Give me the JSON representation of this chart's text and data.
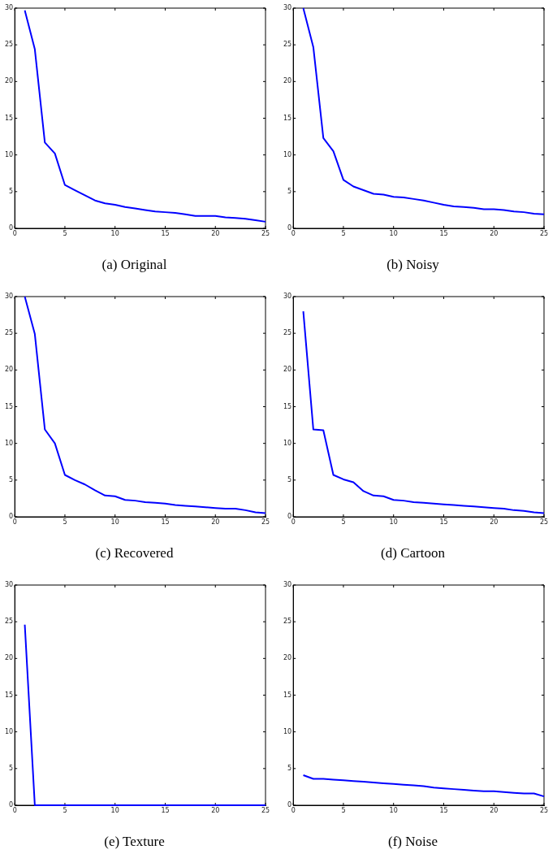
{
  "chart_data": [
    {
      "type": "line",
      "title": "(a) Original",
      "x": [
        1,
        2,
        3,
        4,
        5,
        6,
        7,
        8,
        9,
        10,
        11,
        12,
        13,
        14,
        15,
        16,
        17,
        18,
        19,
        20,
        21,
        22,
        23,
        24,
        25
      ],
      "values": [
        29.7,
        24.4,
        11.7,
        10.2,
        5.9,
        5.2,
        4.5,
        3.8,
        3.4,
        3.2,
        2.9,
        2.7,
        2.5,
        2.3,
        2.2,
        2.1,
        1.9,
        1.7,
        1.7,
        1.7,
        1.5,
        1.4,
        1.3,
        1.1,
        0.9
      ],
      "color": "#0000ff",
      "xlim": [
        0,
        25
      ],
      "ylim": [
        0,
        30
      ],
      "xticks": [
        0,
        5,
        10,
        15,
        20,
        25
      ],
      "yticks": [
        0,
        5,
        10,
        15,
        20,
        25,
        30
      ],
      "grid": false
    },
    {
      "type": "line",
      "title": "(b) Noisy",
      "x": [
        1,
        2,
        3,
        4,
        5,
        6,
        7,
        8,
        9,
        10,
        11,
        12,
        13,
        14,
        15,
        16,
        17,
        18,
        19,
        20,
        21,
        22,
        23,
        24,
        25
      ],
      "values": [
        30,
        24.7,
        12.3,
        10.5,
        6.6,
        5.7,
        5.2,
        4.7,
        4.6,
        4.3,
        4.2,
        4.0,
        3.8,
        3.5,
        3.2,
        3.0,
        2.9,
        2.8,
        2.6,
        2.6,
        2.5,
        2.3,
        2.2,
        2.0,
        1.9
      ],
      "color": "#0000ff",
      "xlim": [
        0,
        25
      ],
      "ylim": [
        0,
        30
      ],
      "xticks": [
        0,
        5,
        10,
        15,
        20,
        25
      ],
      "yticks": [
        0,
        5,
        10,
        15,
        20,
        25,
        30
      ],
      "grid": false
    },
    {
      "type": "line",
      "title": "(c) Recovered",
      "x": [
        1,
        2,
        3,
        4,
        5,
        6,
        7,
        8,
        9,
        10,
        11,
        12,
        13,
        14,
        15,
        16,
        17,
        18,
        19,
        20,
        21,
        22,
        23,
        24,
        25
      ],
      "values": [
        30,
        24.9,
        11.9,
        10.0,
        5.7,
        5.0,
        4.4,
        3.6,
        2.9,
        2.8,
        2.3,
        2.2,
        2.0,
        1.9,
        1.8,
        1.6,
        1.5,
        1.4,
        1.3,
        1.2,
        1.1,
        1.1,
        0.9,
        0.6,
        0.5
      ],
      "color": "#0000ff",
      "xlim": [
        0,
        25
      ],
      "ylim": [
        0,
        30
      ],
      "xticks": [
        0,
        5,
        10,
        15,
        20,
        25
      ],
      "yticks": [
        0,
        5,
        10,
        15,
        20,
        25,
        30
      ],
      "grid": false
    },
    {
      "type": "line",
      "title": "(d) Cartoon",
      "x": [
        1,
        2,
        3,
        4,
        5,
        6,
        7,
        8,
        9,
        10,
        11,
        12,
        13,
        14,
        15,
        16,
        17,
        18,
        19,
        20,
        21,
        22,
        23,
        24,
        25
      ],
      "values": [
        28,
        11.9,
        11.8,
        5.7,
        5.1,
        4.7,
        3.5,
        2.9,
        2.8,
        2.3,
        2.2,
        2.0,
        1.9,
        1.8,
        1.7,
        1.6,
        1.5,
        1.4,
        1.3,
        1.2,
        1.1,
        0.9,
        0.8,
        0.6,
        0.5
      ],
      "color": "#0000ff",
      "xlim": [
        0,
        25
      ],
      "ylim": [
        0,
        30
      ],
      "xticks": [
        0,
        5,
        10,
        15,
        20,
        25
      ],
      "yticks": [
        0,
        5,
        10,
        15,
        20,
        25,
        30
      ],
      "grid": false
    },
    {
      "type": "line",
      "title": "(e) Texture",
      "x": [
        1,
        2,
        3,
        4,
        5,
        6,
        7,
        8,
        9,
        10,
        11,
        12,
        13,
        14,
        15,
        16,
        17,
        18,
        19,
        20,
        21,
        22,
        23,
        24,
        25
      ],
      "values": [
        24.6,
        0,
        0,
        0,
        0,
        0,
        0,
        0,
        0,
        0,
        0,
        0,
        0,
        0,
        0,
        0,
        0,
        0,
        0,
        0,
        0,
        0,
        0,
        0,
        0
      ],
      "color": "#0000ff",
      "xlim": [
        0,
        25
      ],
      "ylim": [
        0,
        30
      ],
      "xticks": [
        0,
        5,
        10,
        15,
        20,
        25
      ],
      "yticks": [
        0,
        5,
        10,
        15,
        20,
        25,
        30
      ],
      "grid": false
    },
    {
      "type": "line",
      "title": "(f) Noise",
      "x": [
        1,
        2,
        3,
        4,
        5,
        6,
        7,
        8,
        9,
        10,
        11,
        12,
        13,
        14,
        15,
        16,
        17,
        18,
        19,
        20,
        21,
        22,
        23,
        24,
        25
      ],
      "values": [
        4.1,
        3.6,
        3.6,
        3.5,
        3.4,
        3.3,
        3.2,
        3.1,
        3.0,
        2.9,
        2.8,
        2.7,
        2.6,
        2.4,
        2.3,
        2.2,
        2.1,
        2.0,
        1.9,
        1.9,
        1.8,
        1.7,
        1.6,
        1.6,
        1.2
      ],
      "color": "#0000ff",
      "xlim": [
        0,
        25
      ],
      "ylim": [
        0,
        30
      ],
      "xticks": [
        0,
        5,
        10,
        15,
        20,
        25
      ],
      "yticks": [
        0,
        5,
        10,
        15,
        20,
        25,
        30
      ],
      "grid": false
    }
  ]
}
